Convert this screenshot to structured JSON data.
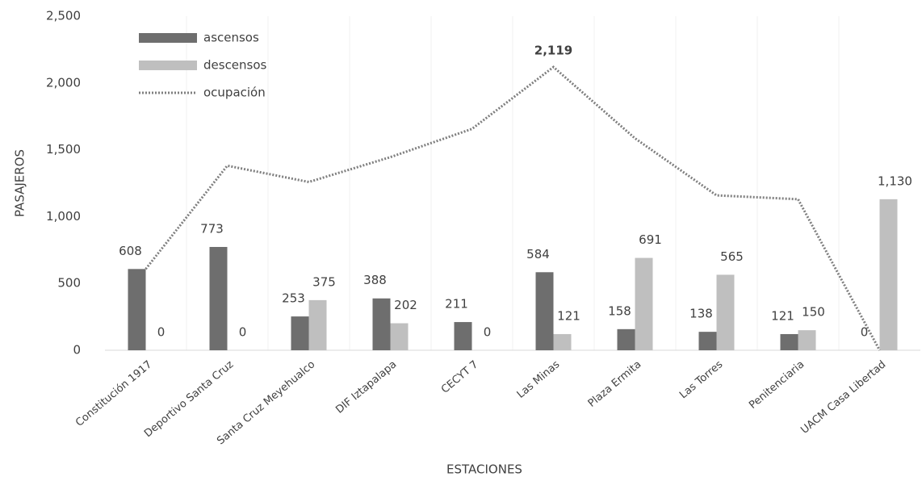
{
  "chart_data": {
    "type": "bar_line",
    "x_label": "ESTACIONES",
    "y_label": "PASAJEROS",
    "categories": [
      "Constitución 1917",
      "Deportivo Santa Cruz",
      "Santa Cruz Meyehualco",
      "DIF Iztapalapa",
      "CECYT 7",
      "Las Minas",
      "Plaza Ermita",
      "Las Torres",
      "Penitenciaria",
      "UACM Casa Libertad"
    ],
    "series": [
      {
        "name": "ascensos",
        "type": "bar",
        "color": "#6e6e6e",
        "values": [
          608,
          773,
          253,
          388,
          211,
          584,
          158,
          138,
          121,
          0
        ]
      },
      {
        "name": "descensos",
        "type": "bar",
        "color": "#bfbfbf",
        "values": [
          0,
          0,
          375,
          202,
          0,
          121,
          691,
          565,
          150,
          1130
        ],
        "value_labels": [
          "0",
          "0",
          "375",
          "202",
          "0",
          "121",
          "691",
          "565",
          "150",
          "1,130"
        ]
      },
      {
        "name": "ocupación",
        "type": "line",
        "color": "#7f7f7f",
        "dash": "dotted",
        "values": [
          608,
          1381,
          1259,
          1445,
          1656,
          2119,
          1586,
          1159,
          1130,
          0
        ],
        "value_labels": [
          null,
          null,
          null,
          null,
          null,
          "2,119",
          null,
          null,
          null,
          null
        ]
      }
    ],
    "ylim": [
      0,
      2500
    ],
    "yticks": [
      0,
      500,
      {
        "value": 1000,
        "label": "1,000"
      },
      {
        "value": 1500,
        "label": "1,500"
      },
      {
        "value": 2000,
        "label": "2,000"
      },
      {
        "value": 2500,
        "label": "2,500"
      }
    ],
    "legend": "top-left",
    "grid": false
  }
}
